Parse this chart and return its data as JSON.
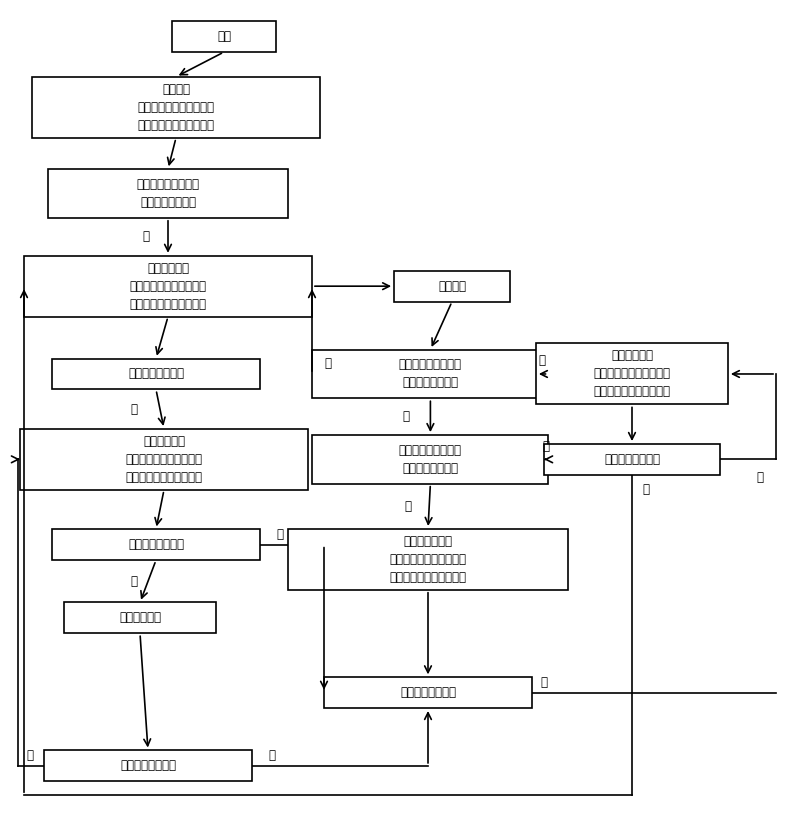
{
  "bg_color": "#ffffff",
  "line_color": "#000000",
  "text_color": "#000000",
  "font_size": 8.5,
  "nodes": {
    "start": [
      0.28,
      0.955,
      0.13,
      0.038,
      "开始"
    ],
    "init_water": [
      0.22,
      0.868,
      0.36,
      0.075,
      "初始上水\n上水阀打开、进气阀关闭\n泄压阀关闭、信号阀关闭"
    ],
    "sensor1": [
      0.21,
      0.762,
      0.3,
      0.06,
      "水温水位传感器检测\n是否到达设定水位"
    ],
    "collect": [
      0.21,
      0.648,
      0.36,
      0.075,
      "进入集热状态\n上水阀关闭、进气阀打开\n泄压阀打开、信号阀打开"
    ],
    "hot_tap1": [
      0.195,
      0.54,
      0.26,
      0.038,
      "热水龙头是否打开"
    ],
    "use_water": [
      0.205,
      0.435,
      0.36,
      0.075,
      "进入用水状态\n上水阀打开、进气阀关闭\n泄压阀关闭、信号阀关闭"
    ],
    "hot_tap2": [
      0.195,
      0.33,
      0.26,
      0.038,
      "热水龙头是否打开"
    ],
    "standby": [
      0.175,
      0.24,
      0.19,
      0.038,
      "进入待机状态"
    ],
    "hot_tap3": [
      0.185,
      0.058,
      0.26,
      0.038,
      "热水龙头是否打开"
    ],
    "need_elec": [
      0.565,
      0.648,
      0.145,
      0.038,
      "需电加热"
    ],
    "sensor2": [
      0.538,
      0.54,
      0.295,
      0.06,
      "水温水位传感器检测\n是否到达设定水位"
    ],
    "sensor3": [
      0.538,
      0.435,
      0.295,
      0.06,
      "水温水位传感器检测\n是否到达设定水温"
    ],
    "elec_heat": [
      0.535,
      0.312,
      0.35,
      0.075,
      "进入电加热状态\n上水阀关闭、进气阀打开\n泄压阀打开、信号阀打开"
    ],
    "hot_tap4": [
      0.535,
      0.148,
      0.26,
      0.038,
      "热水龙头是否打开"
    ],
    "up_water": [
      0.79,
      0.54,
      0.24,
      0.075,
      "进入上水状态\n上水阀打开、进气阀关闭\n泄压阀关闭、信号阀关闭"
    ],
    "hot_tap5": [
      0.79,
      0.435,
      0.22,
      0.038,
      "热水龙头是否打开"
    ]
  }
}
